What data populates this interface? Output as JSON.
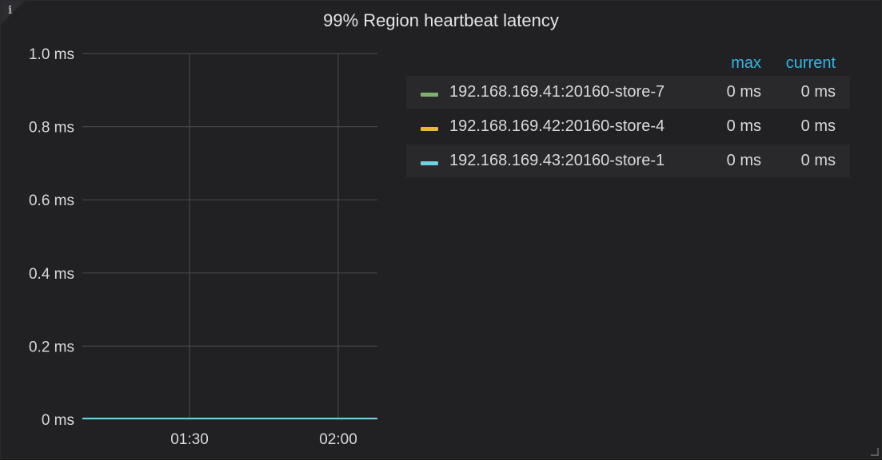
{
  "panel": {
    "info_icon": "i",
    "title": "99% Region heartbeat latency"
  },
  "legend": {
    "headers": {
      "max": "max",
      "current": "current"
    },
    "items": [
      {
        "name": "192.168.169.41:20160-store-7",
        "max": "0 ms",
        "current": "0 ms",
        "color": "#7eb26d"
      },
      {
        "name": "192.168.169.42:20160-store-4",
        "max": "0 ms",
        "current": "0 ms",
        "color": "#eab839"
      },
      {
        "name": "192.168.169.43:20160-store-1",
        "max": "0 ms",
        "current": "0 ms",
        "color": "#6ed0e0"
      }
    ]
  },
  "chart_data": {
    "type": "line",
    "title": "99% Region heartbeat latency",
    "x_ticks": [
      "01:30",
      "02:00"
    ],
    "y_ticks": [
      "0 ms",
      "0.2 ms",
      "0.4 ms",
      "0.6 ms",
      "0.8 ms",
      "1.0 ms"
    ],
    "y_tick_values": [
      0,
      0.2,
      0.4,
      0.6,
      0.8,
      1.0
    ],
    "ylim": [
      0,
      1.0
    ],
    "ylabel": "",
    "xlabel": "",
    "grid": true,
    "legend_position": "right",
    "series": [
      {
        "name": "192.168.169.41:20160-store-7",
        "color": "#7eb26d",
        "values": [
          0,
          0
        ]
      },
      {
        "name": "192.168.169.42:20160-store-4",
        "color": "#eab839",
        "values": [
          0,
          0
        ]
      },
      {
        "name": "192.168.169.43:20160-store-1",
        "color": "#6ed0e0",
        "values": [
          0,
          0
        ]
      }
    ]
  }
}
